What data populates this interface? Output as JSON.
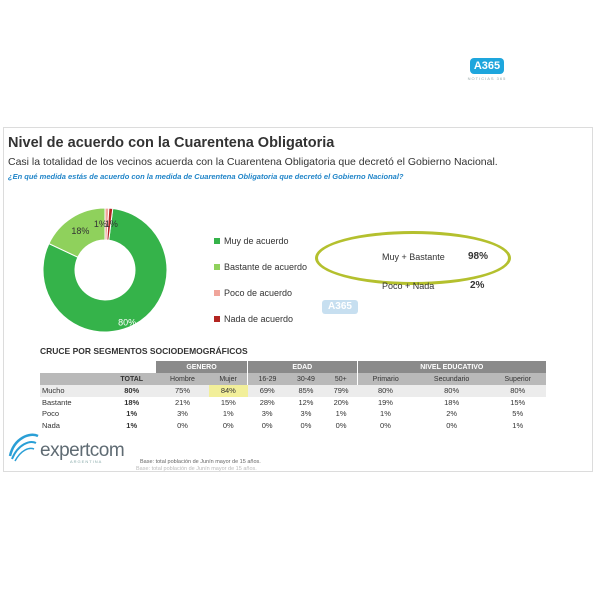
{
  "top_logo": {
    "text": "A365",
    "subtext": "NOTICIAS 365"
  },
  "slide": {
    "title": "Nivel de acuerdo con la Cuarentena Obligatoria",
    "subtitle": "Casi la totalidad de los vecinos acuerda con la Cuarentena Obligatoria que decretó el Gobierno Nacional.",
    "question": "¿En qué medida estás de acuerdo con la medida de Cuarentena Obligatoria que decretó el Gobierno Nacional?"
  },
  "chart_data": {
    "type": "pie",
    "categories": [
      "Muy de acuerdo",
      "Bastante de acuerdo",
      "Poco de acuerdo",
      "Nada de acuerdo"
    ],
    "values": [
      80,
      18,
      1,
      1
    ],
    "data_labels": [
      "80%",
      "18%",
      "1%",
      "1%"
    ],
    "colors": [
      "#35b34a",
      "#8fd15c",
      "#f0a59b",
      "#b32521"
    ],
    "legend_position": "right"
  },
  "summary": {
    "rows": [
      {
        "label": "Muy + Bastante",
        "value": "98%"
      },
      {
        "label": "Poco + Nada",
        "value": "2%"
      }
    ],
    "highlight_color": "#b4c02e"
  },
  "watermark": "A365",
  "segments": {
    "title": "CRUCE POR SEGMENTOS SOCIODEMOGRÁFICOS",
    "groups": [
      "GENERO",
      "EDAD",
      "NIVEL EDUCATIVO"
    ],
    "columns": [
      "TOTAL",
      "Hombre",
      "Mujer",
      "16-29",
      "30-49",
      "50+",
      "Primario",
      "Secundario",
      "Superior"
    ],
    "rows": [
      {
        "label": "Mucho",
        "values": [
          "80%",
          "75%",
          "84%",
          "69%",
          "85%",
          "79%",
          "80%",
          "80%",
          "80%"
        ]
      },
      {
        "label": "Bastante",
        "values": [
          "18%",
          "21%",
          "15%",
          "28%",
          "12%",
          "20%",
          "19%",
          "18%",
          "15%"
        ]
      },
      {
        "label": "Poco",
        "values": [
          "1%",
          "3%",
          "1%",
          "3%",
          "3%",
          "1%",
          "1%",
          "2%",
          "5%"
        ]
      },
      {
        "label": "Nada",
        "values": [
          "1%",
          "0%",
          "0%",
          "0%",
          "0%",
          "0%",
          "0%",
          "0%",
          "1%"
        ]
      }
    ]
  },
  "brand": {
    "name": "expertcom",
    "sub": "ARGENTINA"
  },
  "base_note": "Base: total población de Junín mayor de 15 años."
}
